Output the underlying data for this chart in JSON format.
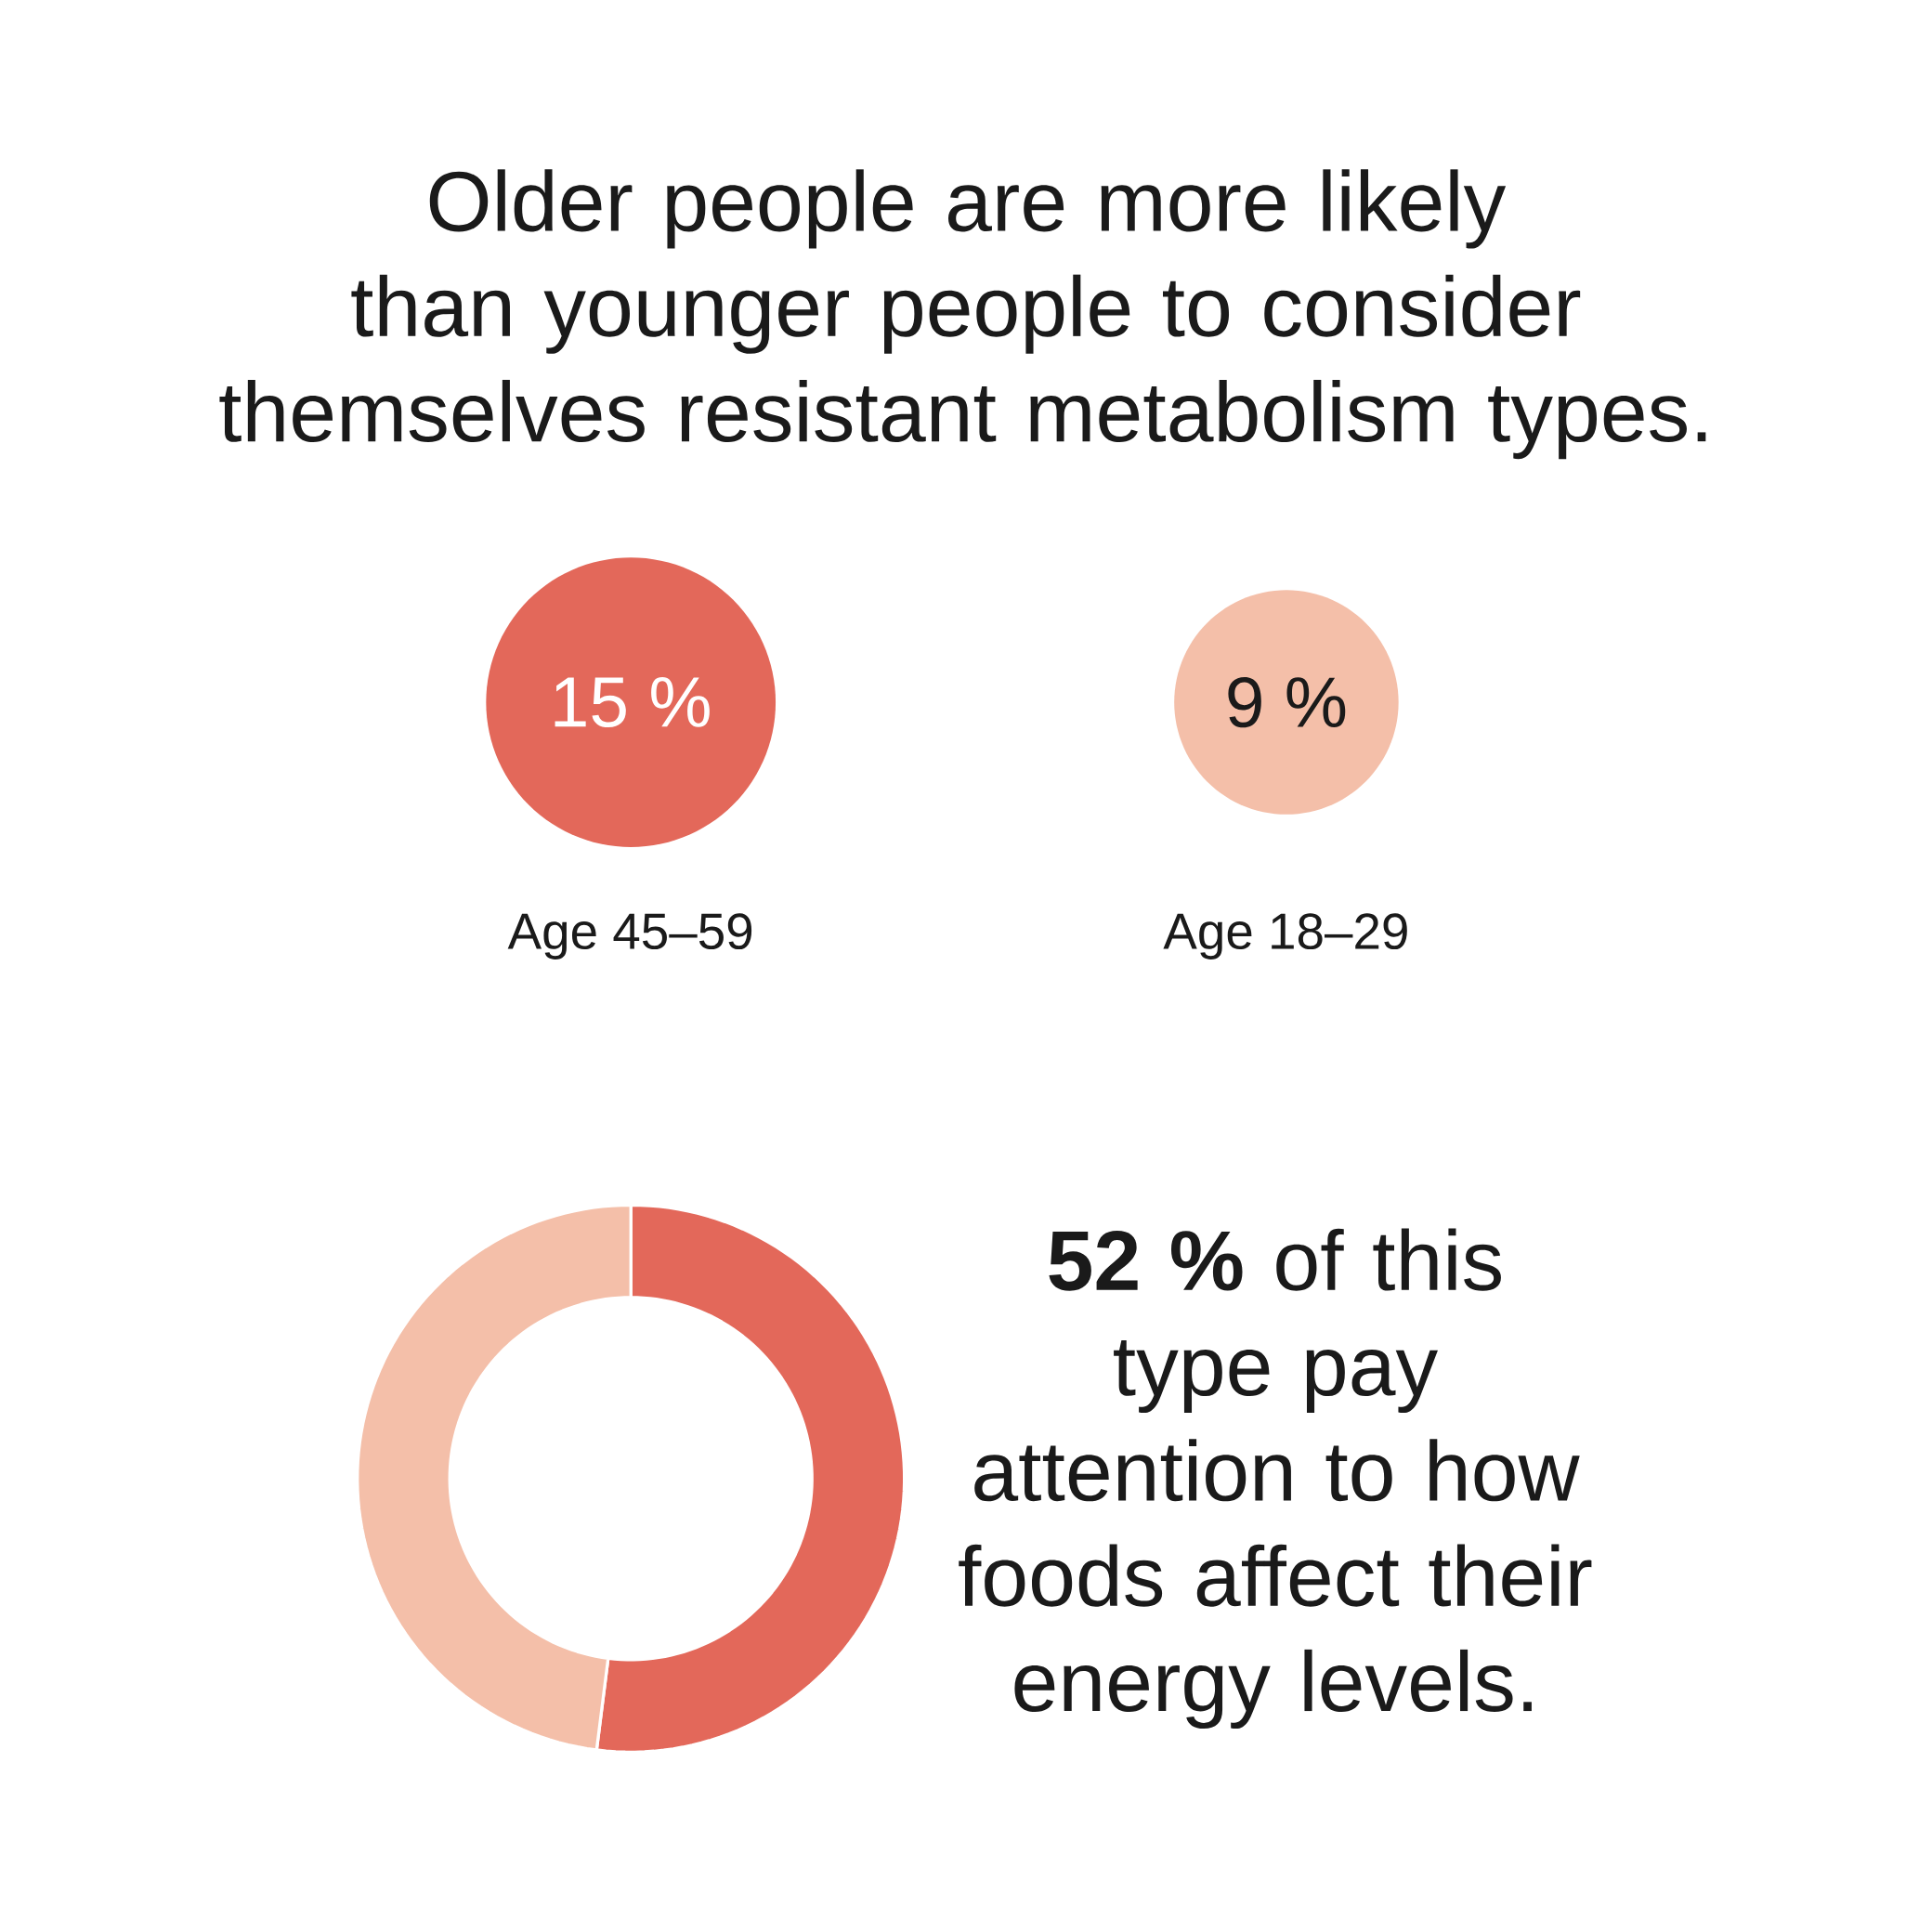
{
  "chart_data": [
    {
      "type": "other",
      "title": "Older people are more likely than younger people to consider themselves resistant metabolism types.",
      "categories": [
        "Age 45–59",
        "Age 18–29"
      ],
      "values": [
        15,
        9
      ],
      "colors": [
        "#e3685a",
        "#f4bfa9"
      ],
      "value_labels": [
        "15 %",
        "9 %"
      ]
    },
    {
      "type": "donut",
      "categories": [
        null,
        null
      ],
      "values": [
        52,
        48
      ],
      "colors": [
        "#e3685a",
        "#f4bfa9"
      ],
      "annotations": [
        "**52 %** of this type pay attention to how foods affect their energy levels."
      ]
    }
  ]
}
